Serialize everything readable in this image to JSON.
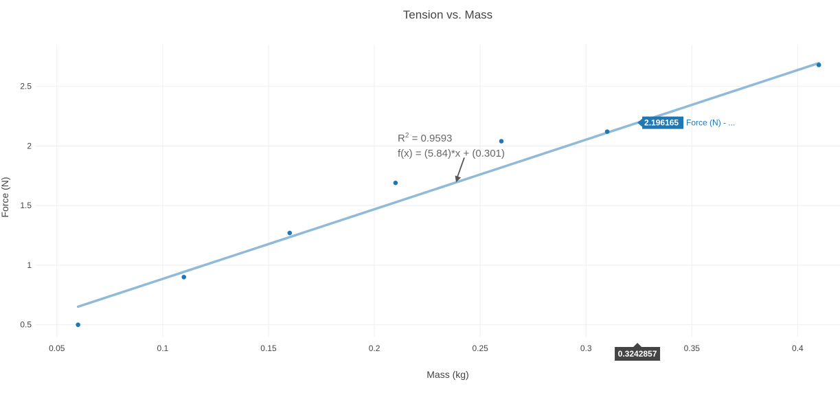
{
  "chart_data": {
    "type": "scatter",
    "title": "Tension vs. Mass",
    "xlabel": "Mass (kg)",
    "ylabel": "Force (N)",
    "xlim": [
      0.04,
      0.42
    ],
    "ylim": [
      0.4,
      2.85
    ],
    "x_ticks": [
      "0.05",
      "0.1",
      "0.15",
      "0.2",
      "0.25",
      "0.3",
      "0.35",
      "0.4"
    ],
    "x_tick_values": [
      0.05,
      0.1,
      0.15,
      0.2,
      0.25,
      0.3,
      0.35,
      0.4
    ],
    "y_ticks": [
      "0.5",
      "1",
      "1.5",
      "2",
      "2.5"
    ],
    "y_tick_values": [
      0.5,
      1,
      1.5,
      2,
      2.5
    ],
    "grid": true,
    "series": [
      {
        "name": "Force (N)",
        "x": [
          0.06,
          0.11,
          0.16,
          0.21,
          0.26,
          0.31,
          0.41
        ],
        "y": [
          0.5,
          0.9,
          1.27,
          1.69,
          2.04,
          2.12,
          2.68
        ],
        "color": "#1f77b4"
      }
    ],
    "fit": {
      "slope": 5.84,
      "intercept": 0.301,
      "x_range": [
        0.06,
        0.41
      ],
      "color": "#8fbad8"
    },
    "annotation": {
      "r2_label": "R",
      "r2_sup": "2",
      "r2_value": " = 0.9593",
      "equation": "f(x) = (5.84)*x + (0.301)",
      "arrow_x": 0.2386
    },
    "hover": {
      "x": 0.3242857,
      "x_label": "0.3242857",
      "y_label": "2.196165",
      "trace_label": "Force (N) - ...",
      "color": "#1f77b4"
    }
  }
}
